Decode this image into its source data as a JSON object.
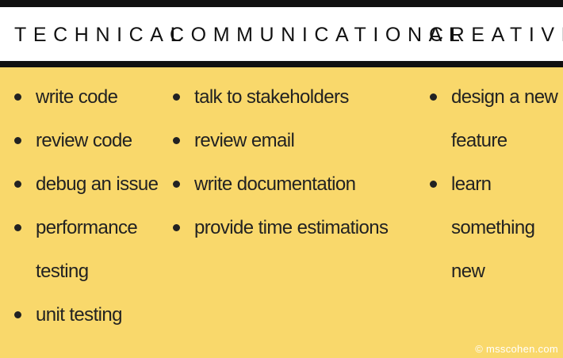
{
  "headings": {
    "technical": "TECHNICAL",
    "communicational": "COMMUNICATIONAL",
    "creative": "CREATIVE"
  },
  "technical": {
    "items": [
      "write code",
      "review code",
      "debug an issue",
      "performance testing",
      "unit testing"
    ]
  },
  "communicational": {
    "items": [
      "talk to stakeholders",
      "review email",
      "write documentation",
      "provide time estimations"
    ]
  },
  "creative": {
    "items": [
      "design a new feature",
      "learn something new"
    ]
  },
  "credit": "© msscohen.com",
  "colors": {
    "background": "#f9d86b",
    "header_band": "#ffffff",
    "rules": "#111111",
    "text": "#222222"
  }
}
